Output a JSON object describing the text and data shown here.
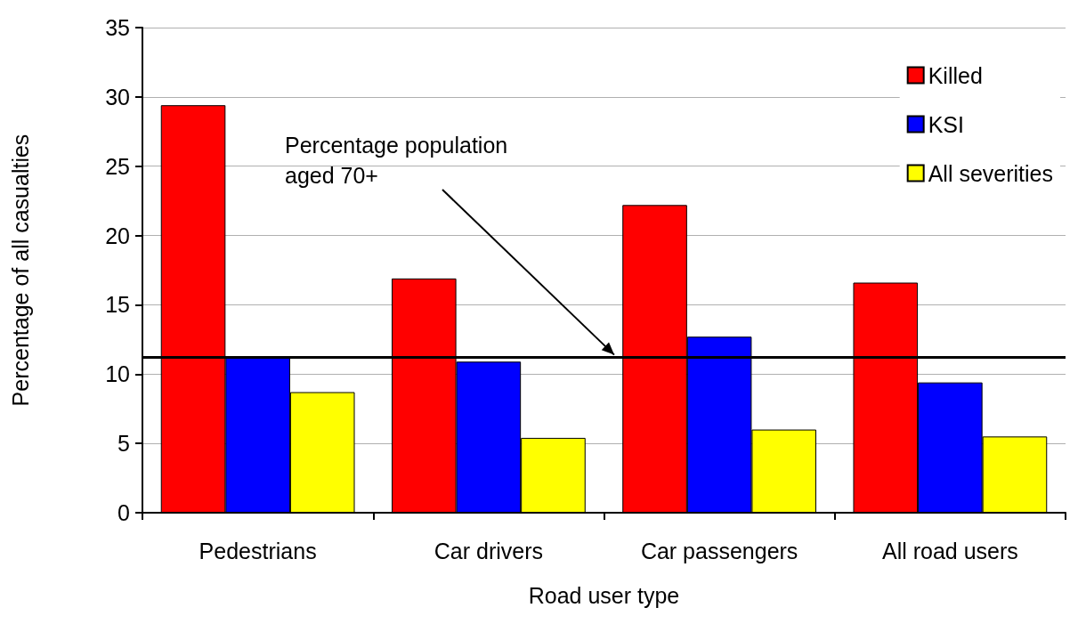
{
  "chart_data": {
    "type": "bar",
    "xlabel": "Road user type",
    "ylabel": "Percentage of all casualties",
    "categories": [
      "Pedestrians",
      "Car drivers",
      "Car passengers",
      "All road users"
    ],
    "series": [
      {
        "name": "Killed",
        "color": "#ff0000",
        "values": [
          29.4,
          16.9,
          22.2,
          16.6
        ]
      },
      {
        "name": "KSI",
        "color": "#0000ff",
        "values": [
          11.2,
          10.9,
          12.7,
          9.4
        ]
      },
      {
        "name": "All severities",
        "color": "#ffff00",
        "values": [
          8.7,
          5.4,
          6.0,
          5.5
        ]
      }
    ],
    "ylim": [
      0,
      35
    ],
    "yticks": [
      0,
      5,
      10,
      15,
      20,
      25,
      30,
      35
    ],
    "grid": "y",
    "legend": "top right",
    "ref_lines": [
      {
        "axis": "y",
        "value": 11.2,
        "label": "Percentage population\naged 70+",
        "color": "#000000",
        "line_style": "solid"
      }
    ]
  }
}
